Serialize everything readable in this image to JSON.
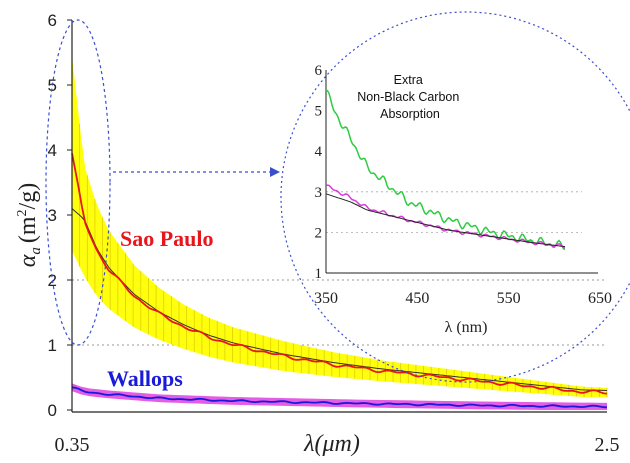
{
  "chart_data": [
    {
      "type": "line",
      "xlabel": "λ(μm)",
      "ylabel": "αa (m2/g)",
      "ylabel_parts": {
        "symbol": "α",
        "sub": "a",
        "units": "(m",
        "sup": "2",
        "units_end": "/g)"
      },
      "x_tick_labels": [
        "0.35",
        "2.5"
      ],
      "xlim": [
        0.35,
        2.5
      ],
      "ylim": [
        0,
        6
      ],
      "y_ticks": [
        "0",
        "1",
        "2",
        "3",
        "4",
        "5",
        "6"
      ],
      "grid": {
        "y_dashed_at": [
          1,
          2
        ]
      },
      "series": [
        {
          "name": "Sao Paulo",
          "color": "#e8161b",
          "band_color": "#ffff00",
          "fit_color": "#333333",
          "x": [
            0.35,
            0.4,
            0.45,
            0.5,
            0.6,
            0.7,
            0.8,
            0.9,
            1.0,
            1.2,
            1.4,
            1.6,
            1.8,
            2.0,
            2.2,
            2.4,
            2.5
          ],
          "values": [
            3.95,
            2.9,
            2.45,
            2.15,
            1.75,
            1.48,
            1.28,
            1.12,
            1.0,
            0.83,
            0.7,
            0.6,
            0.52,
            0.44,
            0.36,
            0.28,
            0.27
          ],
          "band_half_width": [
            1.5,
            0.85,
            0.7,
            0.6,
            0.48,
            0.4,
            0.34,
            0.3,
            0.27,
            0.23,
            0.19,
            0.16,
            0.14,
            0.12,
            0.1,
            0.08,
            0.07
          ]
        },
        {
          "name": "Wallops",
          "color": "#1a1adb",
          "band_color": "#e040e0",
          "x": [
            0.35,
            0.4,
            0.5,
            0.7,
            1.0,
            1.5,
            2.0,
            2.5
          ],
          "values": [
            0.35,
            0.28,
            0.24,
            0.18,
            0.14,
            0.1,
            0.07,
            0.05
          ]
        }
      ],
      "annotations": [
        {
          "type": "ellipse",
          "around_x": 0.35,
          "y_range": [
            1,
            6
          ],
          "color": "#3a4fd0",
          "arrow_to": "inset"
        }
      ]
    },
    {
      "type": "line",
      "title": "Extra Non-Black Carbon Absorption",
      "title_lines": [
        "Extra",
        "Non-Black Carbon",
        "Absorption"
      ],
      "xlabel": "λ (nm)",
      "xlim": [
        350,
        650
      ],
      "ylim": [
        1,
        6
      ],
      "x_ticks": [
        "350",
        "450",
        "550",
        "650"
      ],
      "y_ticks": [
        "1",
        "2",
        "3",
        "4",
        "5",
        "6"
      ],
      "series": [
        {
          "color": "#2ecc40",
          "x": [
            350,
            360,
            380,
            400,
            450,
            500,
            550,
            600,
            640
          ],
          "values": [
            5.5,
            5.0,
            4.3,
            3.6,
            2.75,
            2.3,
            2.0,
            1.8,
            1.65
          ]
        },
        {
          "color": "#d63cd6",
          "x": [
            350,
            380,
            400,
            450,
            500,
            550,
            600,
            640
          ],
          "values": [
            3.15,
            2.85,
            2.6,
            2.3,
            2.05,
            1.9,
            1.75,
            1.65
          ]
        },
        {
          "color": "#222222",
          "x": [
            350,
            380,
            400,
            450,
            500,
            550,
            600,
            640
          ],
          "values": [
            2.95,
            2.75,
            2.55,
            2.3,
            2.05,
            1.9,
            1.75,
            1.65
          ]
        }
      ]
    }
  ]
}
